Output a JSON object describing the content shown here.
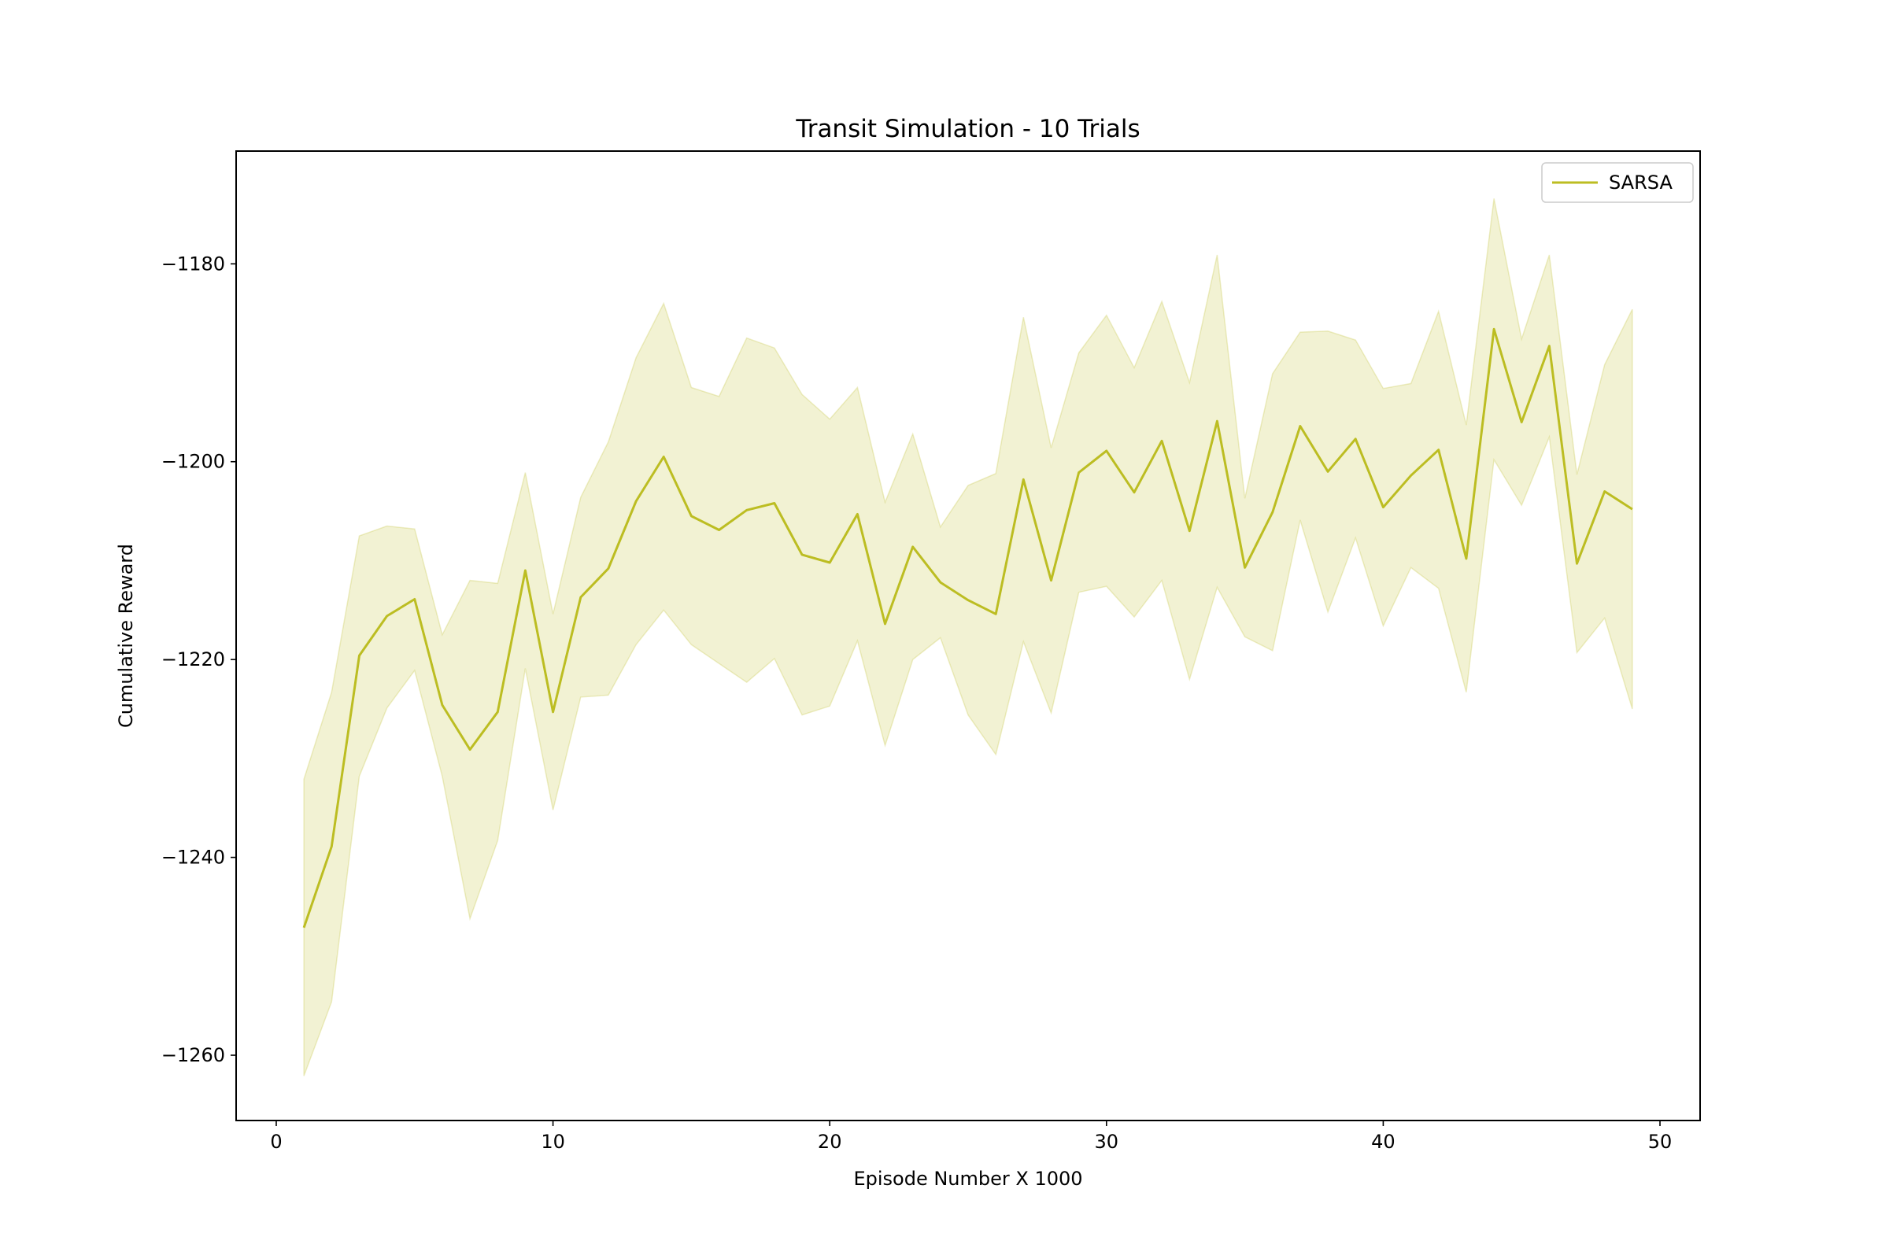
{
  "chart_data": {
    "type": "line",
    "title": "Transit Simulation - 10 Trials",
    "xlabel": "Episode Number X 1000",
    "ylabel": "Cumulative Reward",
    "xlim": [
      -1.45,
      51.45
    ],
    "ylim": [
      -1266.6,
      -1168.6
    ],
    "xticks": [
      0,
      10,
      20,
      30,
      40,
      50
    ],
    "xtick_labels": [
      "0",
      "10",
      "20",
      "30",
      "40",
      "50"
    ],
    "yticks": [
      -1260,
      -1240,
      -1220,
      -1200,
      -1180
    ],
    "ytick_labels": [
      "−1260",
      "−1240",
      "−1220",
      "−1200",
      "−1180"
    ],
    "grid": false,
    "legend": {
      "position": "top-right",
      "entries": [
        "SARSA"
      ]
    },
    "colors": {
      "line": "#bcbd22",
      "band": "#bcbd22"
    },
    "x": [
      1,
      2,
      3,
      4,
      5,
      6,
      7,
      8,
      9,
      10,
      11,
      12,
      13,
      14,
      15,
      16,
      17,
      18,
      19,
      20,
      21,
      22,
      23,
      24,
      25,
      26,
      27,
      28,
      29,
      30,
      31,
      32,
      33,
      34,
      35,
      36,
      37,
      38,
      39,
      40,
      41,
      42,
      43,
      44,
      45,
      46,
      47,
      48,
      49
    ],
    "series": [
      {
        "name": "SARSA",
        "values": [
          -1247.1,
          -1238.9,
          -1219.6,
          -1215.6,
          -1213.9,
          -1224.6,
          -1229.1,
          -1225.3,
          -1211.0,
          -1225.3,
          -1213.7,
          -1210.8,
          -1204.0,
          -1199.5,
          -1205.5,
          -1206.9,
          -1204.9,
          -1204.2,
          -1209.4,
          -1210.2,
          -1205.3,
          -1216.4,
          -1208.6,
          -1212.2,
          -1214.0,
          -1215.4,
          -1201.8,
          -1212.0,
          -1201.1,
          -1198.9,
          -1203.1,
          -1197.9,
          -1207.0,
          -1195.9,
          -1210.7,
          -1205.1,
          -1196.4,
          -1201.0,
          -1197.7,
          -1204.6,
          -1201.4,
          -1198.8,
          -1209.8,
          -1186.6,
          -1196.0,
          -1188.3,
          -1210.3,
          -1203.0,
          -1204.8
        ],
        "upper": [
          -1232.1,
          -1223.3,
          -1207.5,
          -1206.5,
          -1206.8,
          -1217.5,
          -1212.0,
          -1212.3,
          -1201.1,
          -1215.4,
          -1203.6,
          -1198.0,
          -1189.5,
          -1184.0,
          -1192.5,
          -1193.4,
          -1187.5,
          -1188.5,
          -1193.2,
          -1195.7,
          -1192.5,
          -1204.1,
          -1197.2,
          -1206.6,
          -1202.4,
          -1201.2,
          -1185.4,
          -1198.6,
          -1189.0,
          -1185.2,
          -1190.5,
          -1183.8,
          -1192.0,
          -1179.1,
          -1203.7,
          -1191.1,
          -1186.9,
          -1186.8,
          -1187.7,
          -1192.6,
          -1192.1,
          -1184.8,
          -1196.3,
          -1173.4,
          -1187.6,
          -1179.1,
          -1201.3,
          -1190.2,
          -1184.6
        ],
        "lower": [
          -1262.1,
          -1254.6,
          -1231.8,
          -1224.9,
          -1221.1,
          -1231.8,
          -1246.2,
          -1238.3,
          -1220.9,
          -1235.2,
          -1223.8,
          -1223.6,
          -1218.5,
          -1215.0,
          -1218.5,
          -1220.4,
          -1222.3,
          -1219.9,
          -1225.6,
          -1224.7,
          -1218.1,
          -1228.7,
          -1220.0,
          -1217.8,
          -1225.6,
          -1229.6,
          -1218.2,
          -1225.4,
          -1213.2,
          -1212.6,
          -1215.7,
          -1212.0,
          -1222.0,
          -1212.7,
          -1217.7,
          -1219.1,
          -1205.9,
          -1215.2,
          -1207.7,
          -1216.6,
          -1210.7,
          -1212.8,
          -1223.3,
          -1199.8,
          -1204.4,
          -1197.5,
          -1219.3,
          -1215.8,
          -1225.0
        ]
      }
    ]
  }
}
